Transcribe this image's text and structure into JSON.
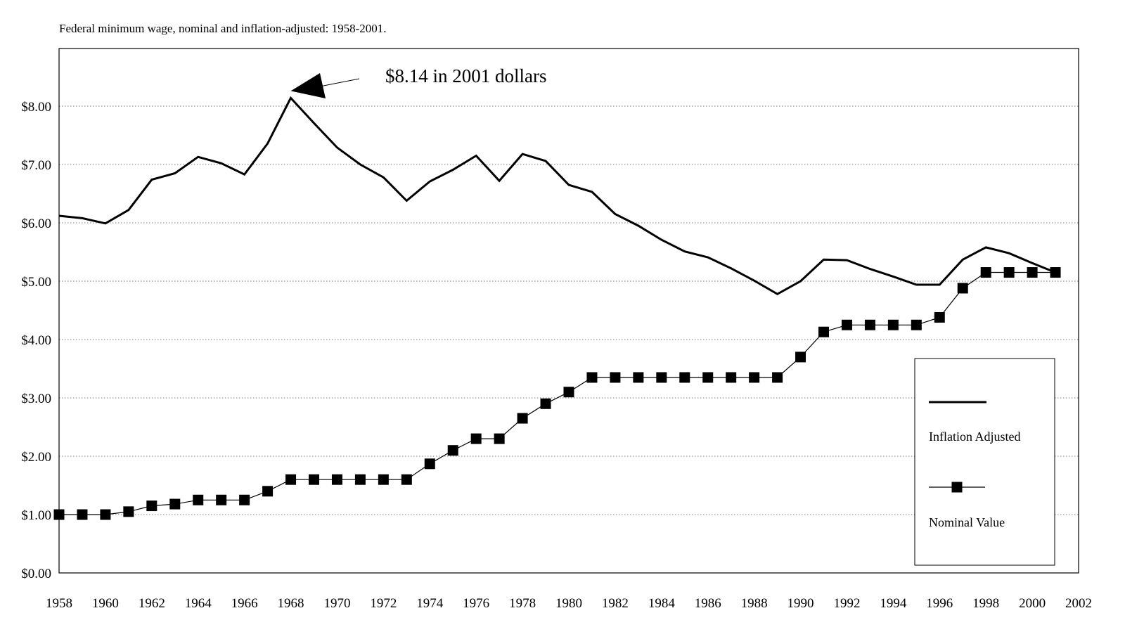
{
  "chart_data": {
    "type": "line",
    "title": "Federal minimum wage, nominal and inflation-adjusted:  1958-2001.",
    "xlabel": "",
    "ylabel": "",
    "xlim": [
      1958,
      2002
    ],
    "ylim": [
      0,
      8.0
    ],
    "x_ticks": [
      1958,
      1960,
      1962,
      1964,
      1966,
      1968,
      1970,
      1972,
      1974,
      1976,
      1978,
      1980,
      1982,
      1984,
      1986,
      1988,
      1990,
      1992,
      1994,
      1996,
      1998,
      2000,
      2002
    ],
    "y_ticks": [
      {
        "value": 0,
        "label": "$0.00"
      },
      {
        "value": 1,
        "label": "$1.00"
      },
      {
        "value": 2,
        "label": "$2.00"
      },
      {
        "value": 3,
        "label": "$3.00"
      },
      {
        "value": 4,
        "label": "$4.00"
      },
      {
        "value": 5,
        "label": "$5.00"
      },
      {
        "value": 6,
        "label": "$6.00"
      },
      {
        "value": 7,
        "label": "$7.00"
      },
      {
        "value": 8,
        "label": "$8.00"
      }
    ],
    "grid": "horizontal dotted",
    "legend_position": "bottom-right",
    "annotation": {
      "text": "$8.14 in 2001 dollars",
      "x": 1968,
      "y": 8.14
    },
    "x": [
      1958,
      1959,
      1960,
      1961,
      1962,
      1963,
      1964,
      1965,
      1966,
      1967,
      1968,
      1969,
      1970,
      1971,
      1972,
      1973,
      1974,
      1975,
      1976,
      1977,
      1978,
      1979,
      1980,
      1981,
      1982,
      1983,
      1984,
      1985,
      1986,
      1987,
      1988,
      1989,
      1990,
      1991,
      1992,
      1993,
      1994,
      1995,
      1996,
      1997,
      1998,
      1999,
      2000,
      2001
    ],
    "series": [
      {
        "name": "Inflation Adjusted",
        "style": "thick line",
        "color": "#000000",
        "values": [
          6.12,
          6.08,
          5.99,
          6.22,
          6.74,
          6.85,
          7.13,
          7.02,
          6.83,
          7.36,
          8.14,
          7.71,
          7.29,
          7.0,
          6.78,
          6.38,
          6.71,
          6.91,
          7.15,
          6.72,
          7.18,
          7.06,
          6.65,
          6.53,
          6.15,
          5.95,
          5.71,
          5.51,
          5.41,
          5.22,
          5.01,
          4.78,
          5.0,
          5.37,
          5.36,
          5.21,
          5.08,
          4.94,
          4.94,
          5.37,
          5.58,
          5.48,
          5.31,
          5.15
        ]
      },
      {
        "name": "Nominal Value",
        "style": "thin line with square markers",
        "color": "#000000",
        "values": [
          1.0,
          1.0,
          1.0,
          1.05,
          1.15,
          1.18,
          1.25,
          1.25,
          1.25,
          1.4,
          1.6,
          1.6,
          1.6,
          1.6,
          1.6,
          1.6,
          1.87,
          2.1,
          2.3,
          2.3,
          2.65,
          2.9,
          3.1,
          3.35,
          3.35,
          3.35,
          3.35,
          3.35,
          3.35,
          3.35,
          3.35,
          3.35,
          3.7,
          4.13,
          4.25,
          4.25,
          4.25,
          4.25,
          4.38,
          4.88,
          5.15,
          5.15,
          5.15,
          5.15
        ]
      }
    ]
  }
}
